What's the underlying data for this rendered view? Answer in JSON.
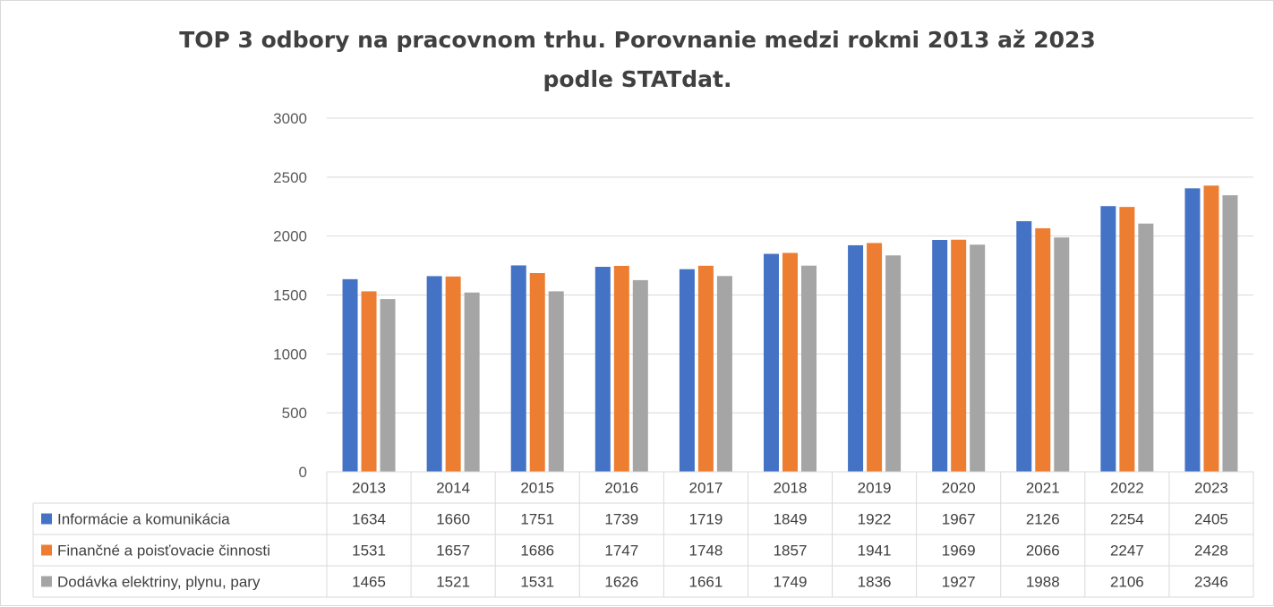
{
  "chart_data": {
    "type": "bar",
    "title_line1": "TOP 3 odbory na pracovnom trhu. Porovnanie medzi rokmi 2013 až 2023",
    "title_line2": "podle STATdat.",
    "categories": [
      "2013",
      "2014",
      "2015",
      "2016",
      "2017",
      "2018",
      "2019",
      "2020",
      "2021",
      "2022",
      "2023"
    ],
    "series": [
      {
        "name": "Informácie a komunikácia",
        "color": "#4472c4",
        "values": [
          1634,
          1660,
          1751,
          1739,
          1719,
          1849,
          1922,
          1967,
          2126,
          2254,
          2405
        ]
      },
      {
        "name": "Finančné a poisťovacie činnosti",
        "color": "#ed7d31",
        "values": [
          1531,
          1657,
          1686,
          1747,
          1748,
          1857,
          1941,
          1969,
          2066,
          2247,
          2428
        ]
      },
      {
        "name": "Dodávka elektriny, plynu, pary",
        "color": "#a5a5a5",
        "values": [
          1465,
          1521,
          1531,
          1626,
          1661,
          1749,
          1836,
          1927,
          1988,
          2106,
          2346
        ]
      }
    ],
    "ylim": [
      0,
      3000
    ],
    "yticks": [
      0,
      500,
      1000,
      1500,
      2000,
      2500,
      3000
    ],
    "grid": true,
    "legend": "data-table"
  }
}
